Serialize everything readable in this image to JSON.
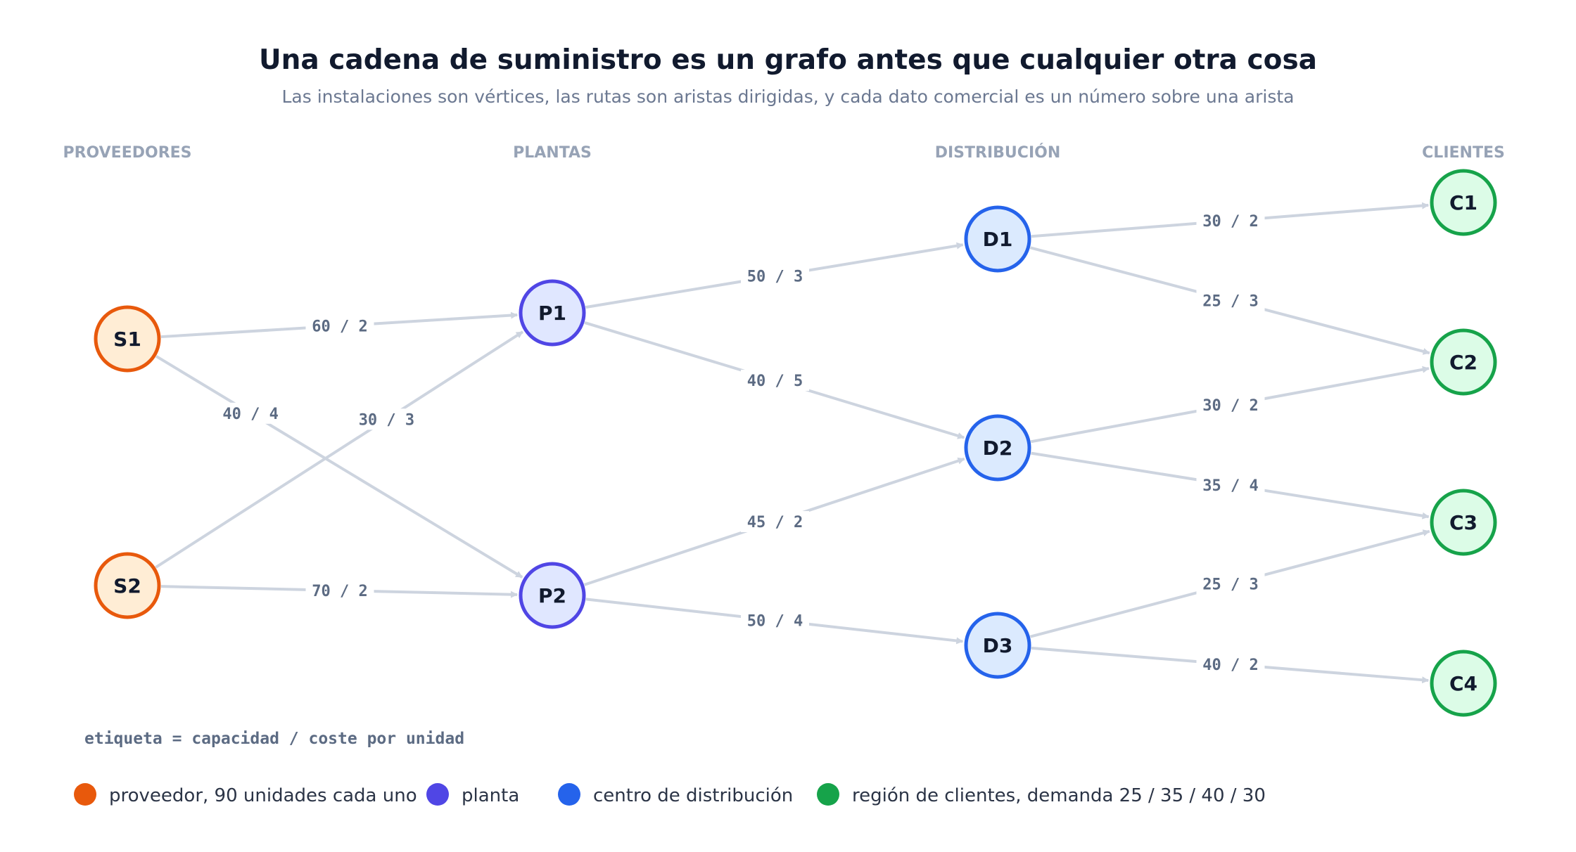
{
  "title": "Una cadena de suministro es un grafo antes que cualquier otra cosa",
  "subtitle": "Las instalaciones son vértices, las rutas son aristas dirigidas, y cada dato comercial es un número sobre una arista",
  "columns": [
    "PROVEEDORES",
    "PLANTAS",
    "DISTRIBUCIÓN",
    "CLIENTES"
  ],
  "colors": {
    "supplier": {
      "stroke": "#e8590c",
      "fill": "#ffedd5"
    },
    "plant": {
      "stroke": "#5046e5",
      "fill": "#e0e7ff"
    },
    "dc": {
      "stroke": "#2563eb",
      "fill": "#dbeafe"
    },
    "customer": {
      "stroke": "#16a34a",
      "fill": "#dcfce7"
    },
    "edge": "#cdd4df"
  },
  "nodes": [
    {
      "id": "S1",
      "type": "supplier"
    },
    {
      "id": "S2",
      "type": "supplier"
    },
    {
      "id": "P1",
      "type": "plant"
    },
    {
      "id": "P2",
      "type": "plant"
    },
    {
      "id": "D1",
      "type": "dc"
    },
    {
      "id": "D2",
      "type": "dc"
    },
    {
      "id": "D3",
      "type": "dc"
    },
    {
      "id": "C1",
      "type": "customer"
    },
    {
      "id": "C2",
      "type": "customer"
    },
    {
      "id": "C3",
      "type": "customer"
    },
    {
      "id": "C4",
      "type": "customer"
    }
  ],
  "edges": [
    {
      "from": "S1",
      "to": "P1",
      "label": "60 / 2"
    },
    {
      "from": "S1",
      "to": "P2",
      "label": "40 / 4"
    },
    {
      "from": "S2",
      "to": "P1",
      "label": "30 / 3"
    },
    {
      "from": "S2",
      "to": "P2",
      "label": "70 / 2"
    },
    {
      "from": "P1",
      "to": "D1",
      "label": "50 / 3"
    },
    {
      "from": "P1",
      "to": "D2",
      "label": "40 / 5"
    },
    {
      "from": "P2",
      "to": "D2",
      "label": "45 / 2"
    },
    {
      "from": "P2",
      "to": "D3",
      "label": "50 / 4"
    },
    {
      "from": "D1",
      "to": "C1",
      "label": "30 / 2"
    },
    {
      "from": "D1",
      "to": "C2",
      "label": "25 / 3"
    },
    {
      "from": "D2",
      "to": "C2",
      "label": "30 / 2"
    },
    {
      "from": "D2",
      "to": "C3",
      "label": "35 / 4"
    },
    {
      "from": "D3",
      "to": "C3",
      "label": "25 / 3"
    },
    {
      "from": "D3",
      "to": "C4",
      "label": "40 / 2"
    }
  ],
  "note": "etiqueta = capacidad / coste por unidad",
  "legend": [
    {
      "type": "supplier",
      "label": "proveedor, 90 unidades cada uno"
    },
    {
      "type": "plant",
      "label": "planta"
    },
    {
      "type": "dc",
      "label": "centro de distribución"
    },
    {
      "type": "customer",
      "label": "región de clientes, demanda 25 / 35 / 40 / 30"
    }
  ]
}
